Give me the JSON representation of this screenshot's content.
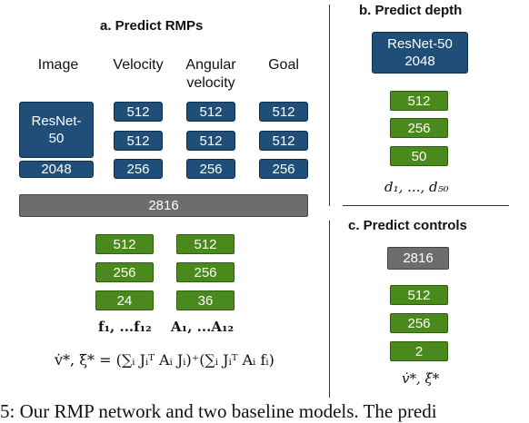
{
  "panel_a": {
    "title": "a. Predict RMPs",
    "col_image": "Image",
    "col_velocity": "Velocity",
    "col_angular": "Angular velocity",
    "col_goal": "Goal",
    "resnet_line1": "ResNet-",
    "resnet_line2": "50",
    "resnet_out": "2048",
    "velocity_layers": [
      "512",
      "512",
      "256"
    ],
    "angular_layers": [
      "512",
      "512",
      "256"
    ],
    "goal_layers": [
      "512",
      "512",
      "256"
    ],
    "concat": "2816",
    "f_layers": [
      "512",
      "256",
      "24"
    ],
    "a_layers": [
      "512",
      "256",
      "36"
    ],
    "f_label": "f₁, ...f₁₂",
    "a_label": "A₁, ...A₁₂",
    "equation": "v̇*, ξ̇* = (∑ᵢ Jᵢᵀ Aᵢ Jᵢ)⁺(∑ᵢ Jᵢᵀ Aᵢ fᵢ)"
  },
  "panel_b": {
    "title": "b. Predict depth",
    "resnet_line1": "ResNet-50",
    "resnet_line2": "2048",
    "layers": [
      "512",
      "256",
      "50"
    ],
    "output": "d₁, ..., d₅₀"
  },
  "panel_c": {
    "title": "c. Predict controls",
    "input": "2816",
    "layers": [
      "512",
      "256",
      "2"
    ],
    "output": "v̇*, ξ̇*"
  },
  "caption_fragment": "5: Our RMP network and two baseline models. The predi"
}
